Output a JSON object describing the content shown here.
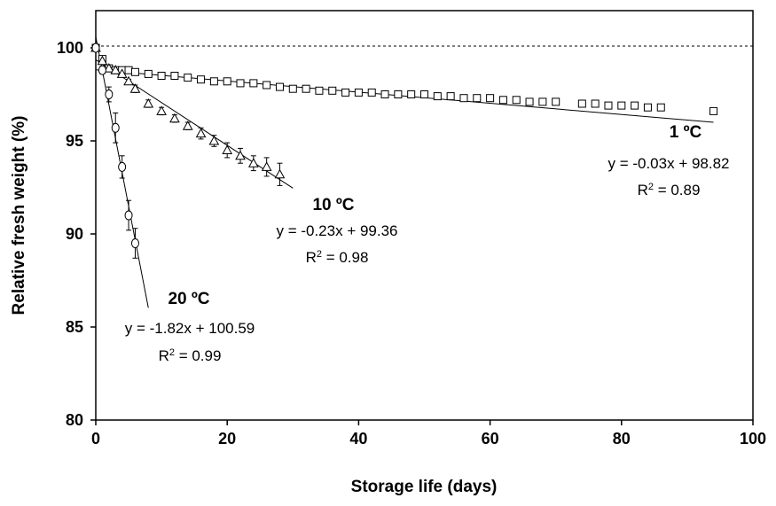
{
  "chart_data": {
    "type": "scatter",
    "xlabel": "Storage life (days)",
    "ylabel": "Relative fresh weight (%)",
    "xlim": [
      0,
      100
    ],
    "ylim": [
      80,
      102
    ],
    "x_ticks": [
      "0",
      "20",
      "40",
      "60",
      "80",
      "100"
    ],
    "y_ticks": [
      "80",
      "85",
      "90",
      "95",
      "100"
    ],
    "reference_line": {
      "y": 100,
      "style": "dashed"
    },
    "grid": false,
    "series": [
      {
        "name": "1 ºC",
        "marker": "square",
        "x": [
          0,
          1,
          2,
          3,
          4,
          5,
          6,
          8,
          10,
          12,
          14,
          16,
          18,
          20,
          22,
          24,
          26,
          28,
          30,
          32,
          34,
          36,
          38,
          40,
          42,
          44,
          46,
          48,
          50,
          52,
          54,
          56,
          58,
          60,
          62,
          64,
          66,
          68,
          70,
          74,
          76,
          78,
          80,
          82,
          84,
          86,
          94
        ],
        "y": [
          100,
          99.4,
          98.9,
          98.8,
          98.8,
          98.8,
          98.7,
          98.6,
          98.5,
          98.5,
          98.4,
          98.3,
          98.2,
          98.2,
          98.1,
          98.1,
          98.0,
          97.9,
          97.8,
          97.8,
          97.7,
          97.7,
          97.6,
          97.6,
          97.6,
          97.5,
          97.5,
          97.5,
          97.5,
          97.4,
          97.4,
          97.3,
          97.3,
          97.3,
          97.2,
          97.2,
          97.1,
          97.1,
          97.1,
          97.0,
          97.0,
          96.9,
          96.9,
          96.9,
          96.8,
          96.8,
          96.6
        ],
        "fit": {
          "slope": -0.03,
          "intercept": 98.82,
          "x_range": [
            0,
            94
          ]
        },
        "equation": "y = -0.03x + 98.82",
        "r2_value": "0.89"
      },
      {
        "name": "10 ºC",
        "marker": "triangle",
        "x": [
          0,
          1,
          2,
          3,
          4,
          5,
          6,
          8,
          10,
          12,
          14,
          16,
          18,
          20,
          22,
          24,
          26,
          28
        ],
        "y": [
          100,
          99.3,
          98.9,
          98.8,
          98.6,
          98.2,
          97.8,
          97.0,
          96.6,
          96.2,
          95.8,
          95.4,
          95.0,
          94.5,
          94.2,
          93.8,
          93.6,
          93.2
        ],
        "error": [
          0,
          0.1,
          0.1,
          0.1,
          0.1,
          0.1,
          0.2,
          0.2,
          0.2,
          0.2,
          0.2,
          0.3,
          0.3,
          0.4,
          0.4,
          0.4,
          0.5,
          0.6
        ],
        "fit": {
          "slope": -0.23,
          "intercept": 99.36,
          "x_range": [
            0,
            30
          ]
        },
        "equation": "y = -0.23x + 99.36",
        "r2_value": "0.98"
      },
      {
        "name": "20 ºC",
        "marker": "circle",
        "x": [
          0,
          1,
          2,
          3,
          4,
          5,
          6
        ],
        "y": [
          100,
          98.8,
          97.5,
          95.7,
          93.6,
          91.0,
          89.5
        ],
        "error": [
          0,
          0.2,
          0.4,
          0.8,
          0.6,
          0.8,
          0.8
        ],
        "fit": {
          "slope": -1.82,
          "intercept": 100.59,
          "x_range": [
            0,
            8
          ]
        },
        "equation": "y = -1.82x + 100.59",
        "r2_value": "0.99"
      }
    ]
  }
}
